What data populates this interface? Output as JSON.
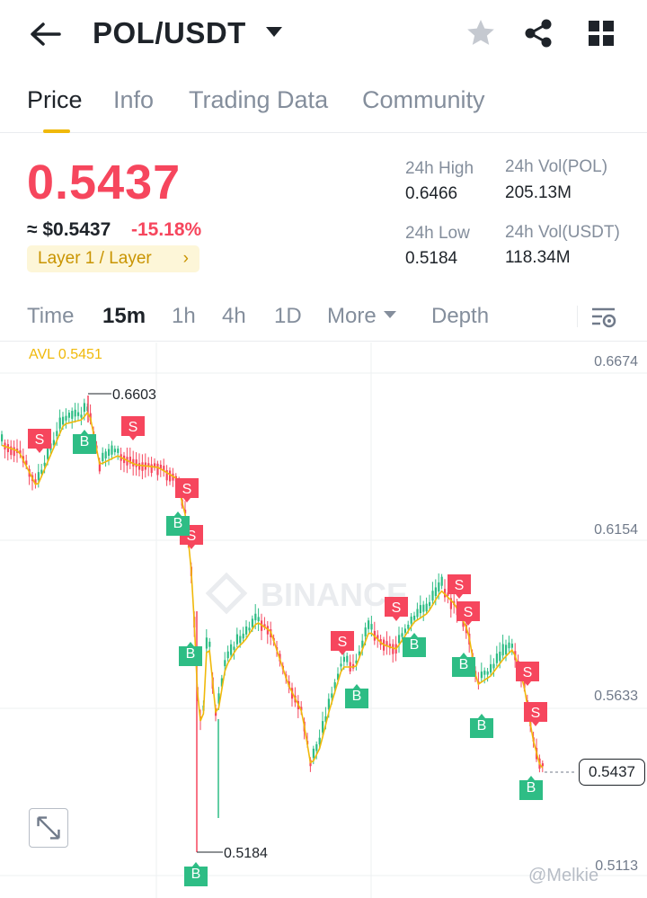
{
  "header": {
    "pair": "POL/USDT",
    "icons": [
      "back-arrow-icon",
      "caret-down-icon",
      "star-icon",
      "share-icon",
      "grid-icon"
    ]
  },
  "tabs": [
    {
      "label": "Price",
      "active": true
    },
    {
      "label": "Info",
      "active": false
    },
    {
      "label": "Trading Data",
      "active": false
    },
    {
      "label": "Community",
      "active": false
    }
  ],
  "summary": {
    "price": "0.5437",
    "usd_price": "≈ $0.5437",
    "change": "-15.18%",
    "tag": "Layer 1 / Layer",
    "high_label": "24h High",
    "high_value": "0.6466",
    "low_label": "24h Low",
    "low_value": "0.5184",
    "vol_pol_label": "24h Vol(POL)",
    "vol_pol_value": "205.13M",
    "vol_usdt_label": "24h Vol(USDT)",
    "vol_usdt_value": "118.34M"
  },
  "intervals": {
    "time": "Time",
    "m15": "15m",
    "h1": "1h",
    "h4": "4h",
    "d1": "1D",
    "more": "More",
    "depth": "Depth",
    "active": "15m"
  },
  "chart": {
    "avl": "AVL 0.5451",
    "axis": [
      "0.6674",
      "0.6154",
      "0.5633",
      "0.5113"
    ],
    "high_marker": "0.6603",
    "low_marker": "0.5184",
    "last_price": "0.5437",
    "watermark": "BINANCE",
    "colors": {
      "up": "#2ebd85",
      "down": "#f6465d",
      "avl_line": "#f0b90b"
    }
  },
  "credit": "@Melkie"
}
